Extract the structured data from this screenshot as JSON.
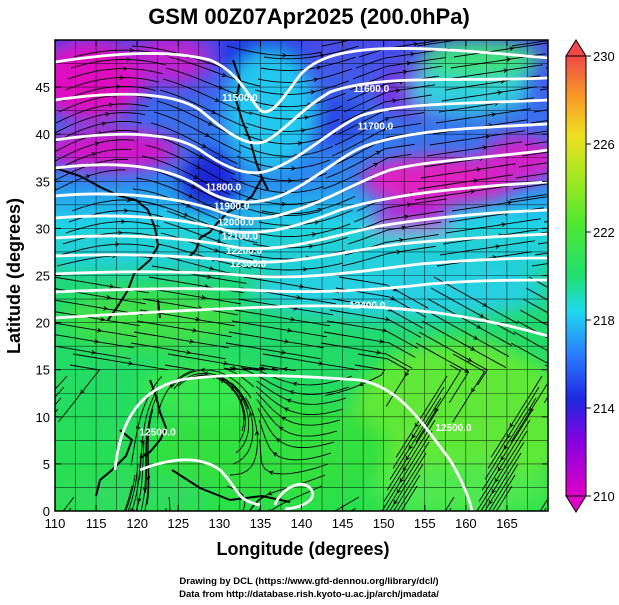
{
  "title": "GSM 00Z07Apr2025 (200.0hPa)",
  "xlabel": "Longitude (degrees)",
  "ylabel": "Latitude  (degrees)",
  "credit_line1": "Drawing by DCL (https://www.gfd-dennou.org/library/dcl/)",
  "credit_line2": "Data from http://database.rish.kyoto-u.ac.jp/arch/jmadata/",
  "x_ticks": [
    "110",
    "115",
    "120",
    "125",
    "130",
    "135",
    "140",
    "145",
    "150",
    "155",
    "160",
    "165"
  ],
  "y_ticks": [
    "0",
    "5",
    "10",
    "15",
    "20",
    "25",
    "30",
    "35",
    "40",
    "45"
  ],
  "colorbar": {
    "ticks": [
      "210",
      "214",
      "218",
      "222",
      "226",
      "230"
    ],
    "range": [
      210,
      230
    ],
    "colors": [
      "#e000c8",
      "#7a00e0",
      "#1a2ee6",
      "#28a0ff",
      "#20e0f0",
      "#20e060",
      "#58e828",
      "#a8e820",
      "#f0e020",
      "#f89020",
      "#f04040"
    ]
  },
  "map": {
    "lon_range": [
      110,
      170
    ],
    "lat_range": [
      0,
      50
    ],
    "variable": "temperature (K) shaded, geopotential height contours, wind streamlines"
  },
  "contour_labels": [
    {
      "text": "11500.0",
      "lon": 132.5,
      "lat": 43.5
    },
    {
      "text": "11600.0",
      "lon": 148.5,
      "lat": 44.5
    },
    {
      "text": "11700.0",
      "lon": 149.0,
      "lat": 40.5
    },
    {
      "text": "11800.0",
      "lon": 130.5,
      "lat": 34.0
    },
    {
      "text": "11900.0",
      "lon": 131.5,
      "lat": 32.0
    },
    {
      "text": "12000.0",
      "lon": 132.0,
      "lat": 30.3
    },
    {
      "text": "12100.0",
      "lon": 132.5,
      "lat": 28.8
    },
    {
      "text": "12200.0",
      "lon": 133.0,
      "lat": 27.3
    },
    {
      "text": "12300.0",
      "lon": 133.5,
      "lat": 25.9
    },
    {
      "text": "12400.0",
      "lon": 148.0,
      "lat": 21.5
    },
    {
      "text": "12500.0",
      "lon": 122.5,
      "lat": 8.0
    },
    {
      "text": "12500.0",
      "lon": 158.5,
      "lat": 8.5
    }
  ]
}
